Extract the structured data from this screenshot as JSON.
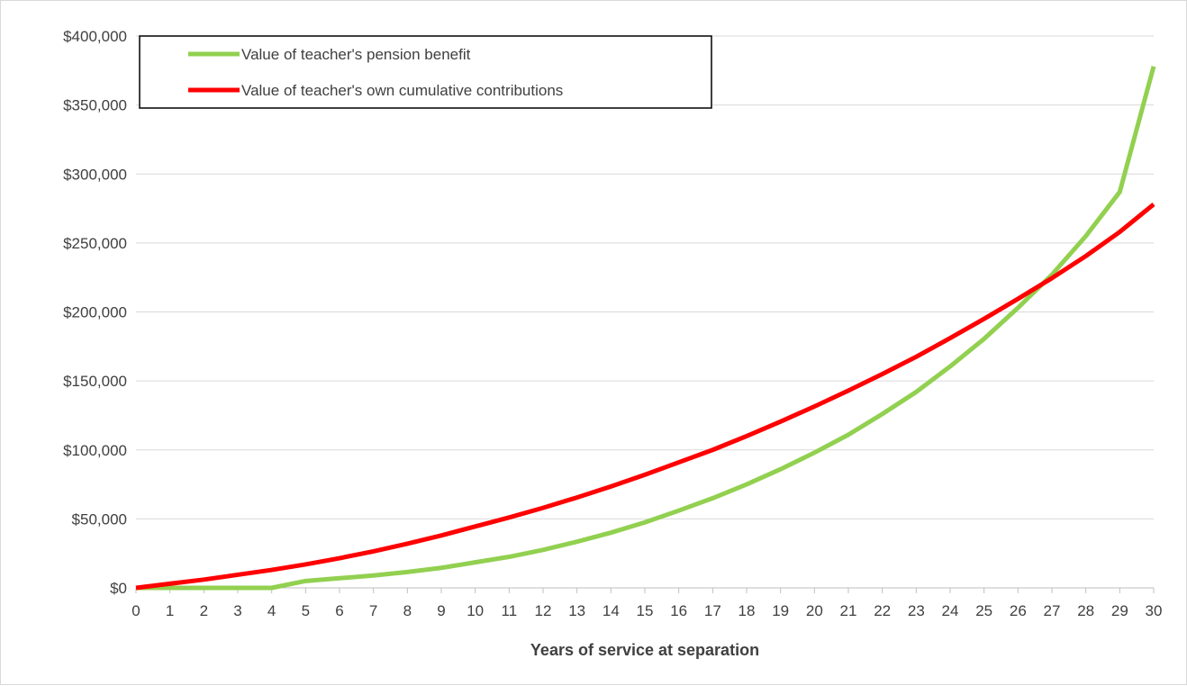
{
  "chart_data": {
    "type": "line",
    "title": "",
    "xlabel": "Years of service at separation",
    "ylabel": "",
    "x": [
      0,
      1,
      2,
      3,
      4,
      5,
      6,
      7,
      8,
      9,
      10,
      11,
      12,
      13,
      14,
      15,
      16,
      17,
      18,
      19,
      20,
      21,
      22,
      23,
      24,
      25,
      26,
      27,
      28,
      29,
      30
    ],
    "ylim": [
      0,
      400000
    ],
    "y_ticks": [
      0,
      50000,
      100000,
      150000,
      200000,
      250000,
      300000,
      350000,
      400000
    ],
    "y_tick_labels": [
      "$0",
      "$50,000",
      "$100,000",
      "$150,000",
      "$200,000",
      "$250,000",
      "$300,000",
      "$350,000",
      "$400,000"
    ],
    "grid": true,
    "legend_position": "top-left",
    "series": [
      {
        "name": "Value of teacher's pension benefit",
        "color": "#92d050",
        "values": [
          0,
          0,
          0,
          0,
          0,
          5000,
          7000,
          9000,
          11500,
          14500,
          18500,
          22500,
          27500,
          33500,
          40000,
          47500,
          56000,
          65000,
          75000,
          86000,
          98000,
          111000,
          126000,
          142000,
          160500,
          180500,
          203000,
          227000,
          255000,
          287000,
          378000
        ]
      },
      {
        "name": "Value of teacher's own cumulative contributions",
        "color": "#ff0000",
        "values": [
          0,
          3000,
          6000,
          9500,
          13000,
          17000,
          21500,
          26500,
          32000,
          38000,
          44500,
          51000,
          58000,
          65500,
          73500,
          82000,
          91000,
          100000,
          110000,
          120500,
          131500,
          143000,
          155000,
          167500,
          181000,
          195000,
          209500,
          224500,
          240500,
          258000,
          278000
        ]
      }
    ]
  }
}
